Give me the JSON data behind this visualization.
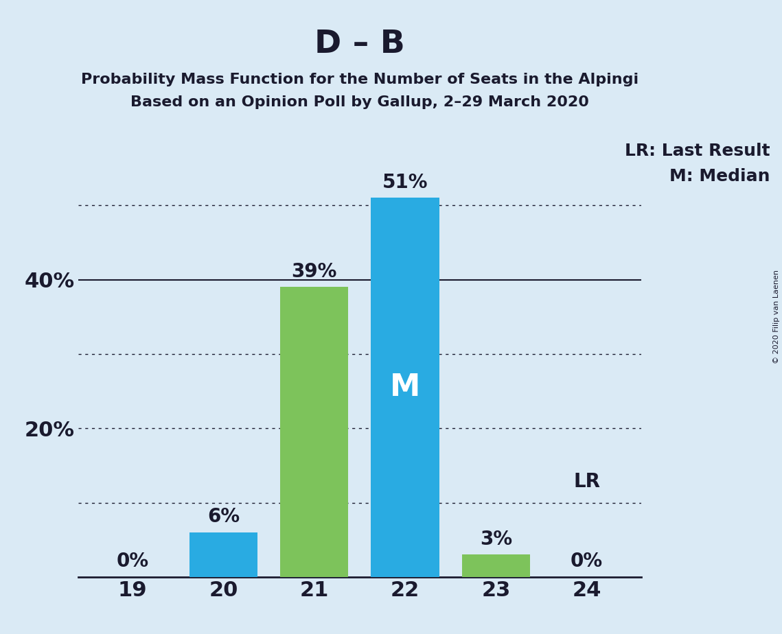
{
  "title": "D – B",
  "subtitle1": "Probability Mass Function for the Number of Seats in the Alpingi",
  "subtitle2": "Based on an Opinion Poll by Gallup, 2–29 March 2020",
  "copyright": "© 2020 Filip van Laenen",
  "x_labels": [
    19,
    20,
    21,
    22,
    23,
    24
  ],
  "values": [
    0,
    6,
    39,
    51,
    3,
    0
  ],
  "bar_colors": [
    "#29abe2",
    "#29abe2",
    "#7dc35b",
    "#29abe2",
    "#7dc35b",
    "#29abe2"
  ],
  "bar_labels": [
    "0%",
    "6%",
    "39%",
    "51%",
    "3%",
    "0%"
  ],
  "median_bar_index": 3,
  "median_label": "M",
  "lr_bar_index": 5,
  "lr_label": "LR",
  "legend_lr": "LR: Last Result",
  "legend_m": "M: Median",
  "ylim": [
    0,
    58
  ],
  "ytick_positions": [
    20,
    40
  ],
  "ytick_labels": [
    "20%",
    "40%"
  ],
  "solid_yticks": [
    40
  ],
  "dotted_yticks": [
    10,
    20,
    30,
    50
  ],
  "background_color": "#daeaf5",
  "plot_bg_color": "#daeaf5",
  "title_fontsize": 34,
  "subtitle_fontsize": 16,
  "bar_label_fontsize": 20,
  "axis_fontsize": 22,
  "legend_fontsize": 18,
  "median_fontsize": 32,
  "lr_fontsize": 20
}
